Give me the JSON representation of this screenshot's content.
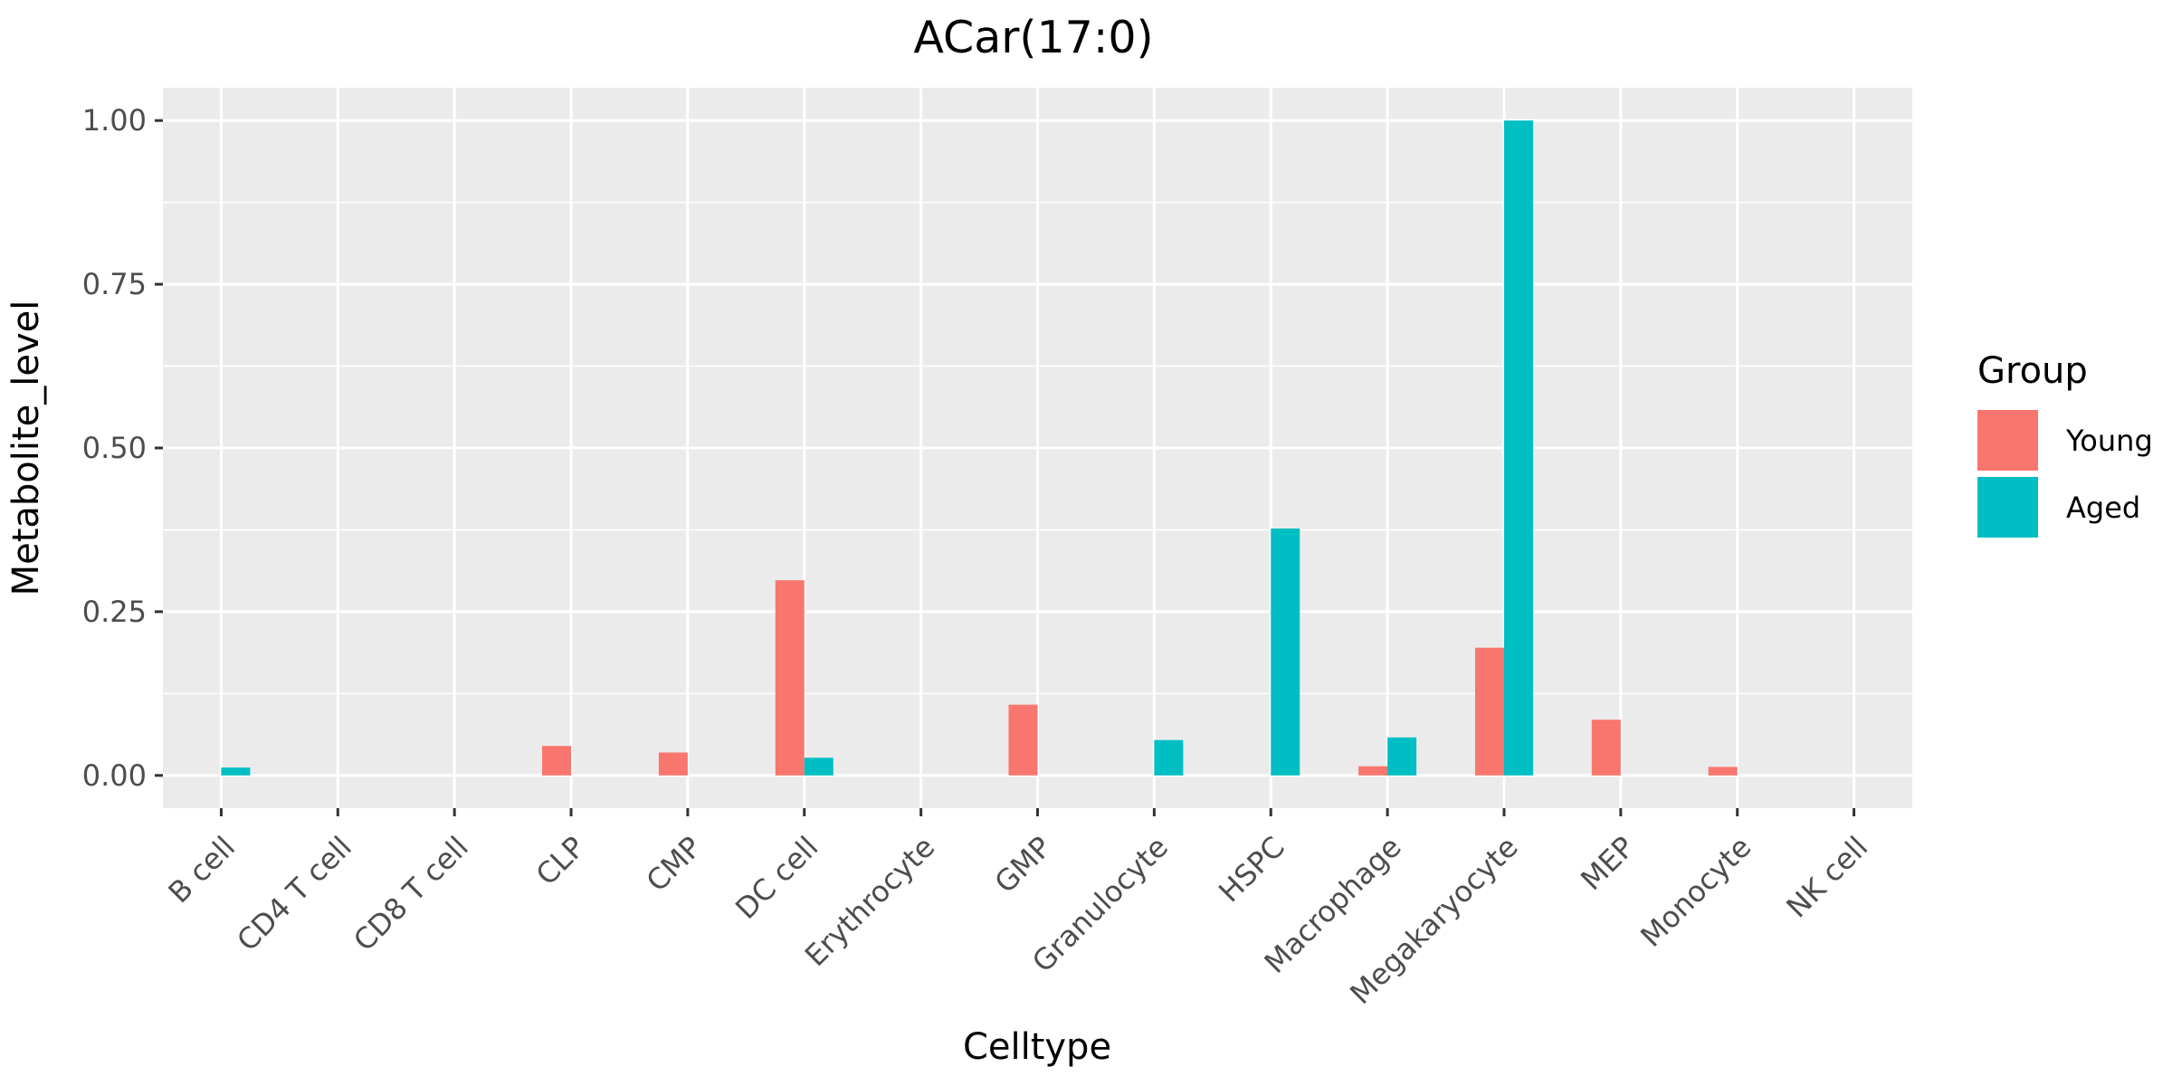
{
  "chart_data": {
    "type": "bar",
    "title": "ACar(17:0)",
    "xlabel": "Celltype",
    "ylabel": "Metabolite_level",
    "categories": [
      "B cell",
      "CD4 T cell",
      "CD8 T cell",
      "CLP",
      "CMP",
      "DC cell",
      "Erythrocyte",
      "GMP",
      "Granulocyte",
      "HSPC",
      "Macrophage",
      "Megakaryocyte",
      "MEP",
      "Monocyte",
      "NK cell"
    ],
    "series": [
      {
        "name": "Young",
        "color": "#F8766D",
        "values": [
          0.0,
          0.0,
          0.0,
          0.045,
          0.035,
          0.298,
          0.0,
          0.108,
          0.0,
          0.0,
          0.014,
          0.195,
          0.085,
          0.013,
          0.0
        ]
      },
      {
        "name": "Aged",
        "color": "#00BFC4",
        "values": [
          0.012,
          0.0,
          0.0,
          0.0,
          0.0,
          0.027,
          0.0,
          0.0,
          0.054,
          0.377,
          0.058,
          1.0,
          0.0,
          0.0,
          0.0
        ]
      }
    ],
    "ylim": [
      -0.05,
      1.05
    ],
    "yticks": [
      0.0,
      0.25,
      0.5,
      0.75,
      1.0
    ],
    "ytick_labels": [
      "0.00",
      "0.25",
      "0.50",
      "0.75",
      "1.00"
    ],
    "grid": true,
    "legend": {
      "title": "Group",
      "position": "right"
    },
    "colors": {
      "panel_background": "#EBEBEB",
      "grid": "#FFFFFF",
      "tick_text": "#4D4D4D",
      "tick_mark": "#333333"
    }
  }
}
